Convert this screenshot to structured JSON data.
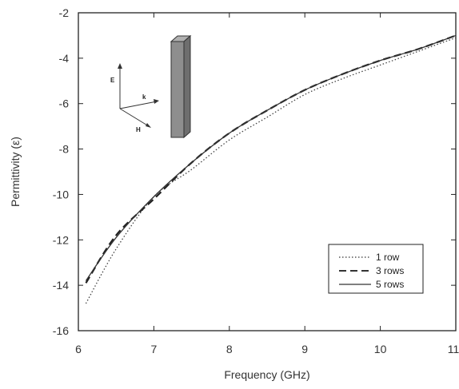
{
  "chart_data": {
    "type": "line",
    "xlabel": "Frequency (GHz)",
    "ylabel": "Permittivity (ε)",
    "xlim": [
      6,
      11
    ],
    "ylim": [
      -16,
      -2
    ],
    "xticks": [
      6,
      7,
      8,
      9,
      10,
      11
    ],
    "yticks": [
      -2,
      -4,
      -6,
      -8,
      -10,
      -12,
      -14,
      -16
    ],
    "grid": false,
    "legend_position": "bottom-right",
    "series": [
      {
        "name": "1 row",
        "style": "dotted",
        "x": [
          6.1,
          6.5,
          7,
          7.5,
          8,
          8.5,
          9,
          9.5,
          10,
          10.5,
          11
        ],
        "y": [
          -14.8,
          -12.4,
          -10.1,
          -8.9,
          -7.6,
          -6.6,
          -5.6,
          -4.9,
          -4.3,
          -3.7,
          -3.1
        ]
      },
      {
        "name": "3 rows",
        "style": "dashed",
        "x": [
          6.1,
          6.5,
          7,
          7.5,
          8,
          8.5,
          9,
          9.5,
          10,
          10.5,
          11
        ],
        "y": [
          -13.9,
          -11.8,
          -10.2,
          -8.6,
          -7.3,
          -6.3,
          -5.4,
          -4.7,
          -4.1,
          -3.6,
          -3.0
        ]
      },
      {
        "name": "5 rows",
        "style": "solid",
        "x": [
          6.1,
          6.5,
          7,
          7.5,
          8,
          8.5,
          9,
          9.5,
          10,
          10.5,
          11
        ],
        "y": [
          -13.8,
          -11.9,
          -10.1,
          -8.6,
          -7.3,
          -6.3,
          -5.4,
          -4.7,
          -4.1,
          -3.6,
          -3.0
        ]
      }
    ],
    "inset_labels": {
      "e": "E",
      "k": "k",
      "h": "H"
    }
  }
}
